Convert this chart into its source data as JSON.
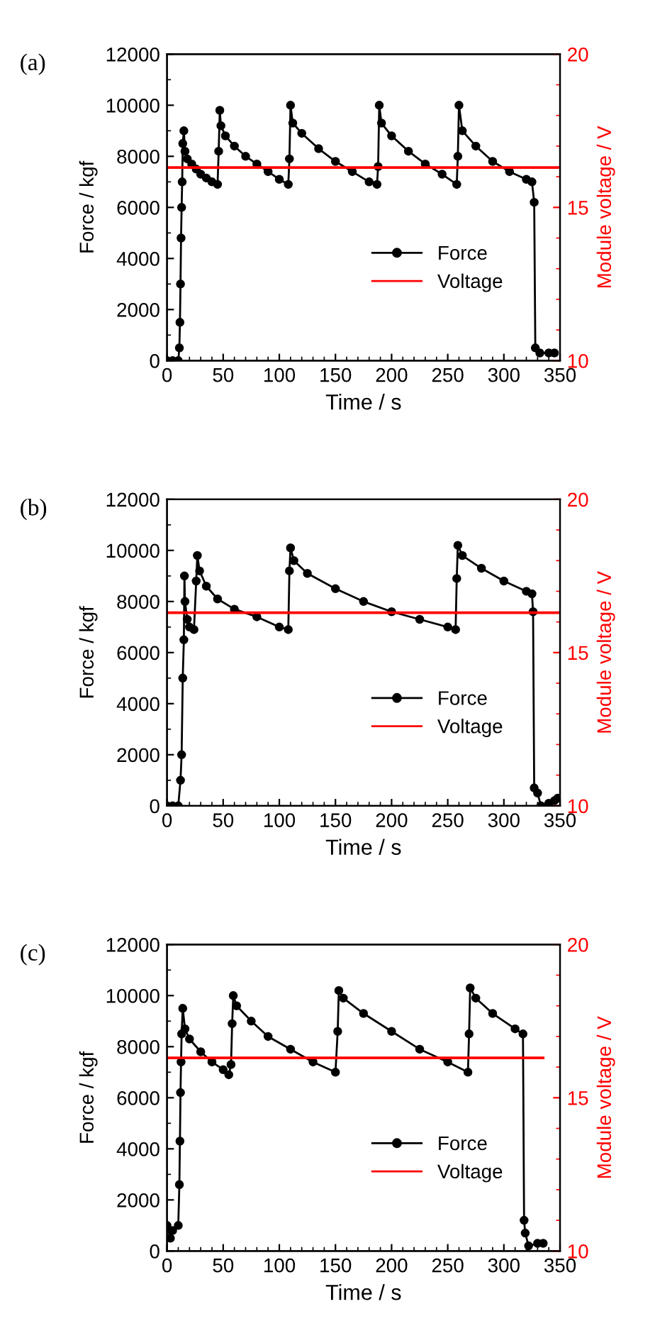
{
  "chart_data": [
    {
      "type": "line",
      "annotations": [
        "(a)"
      ],
      "xlabel": "Time / s",
      "ylabel": "Force / kgf",
      "y2label": "Module voltage / V",
      "xlim": [
        0,
        350
      ],
      "xticks": [
        0,
        50,
        100,
        150,
        200,
        250,
        300,
        350
      ],
      "ylim": [
        0,
        12000
      ],
      "yticks": [
        0,
        2000,
        4000,
        6000,
        8000,
        10000,
        12000
      ],
      "y2lim": [
        10,
        20
      ],
      "y2ticks": [
        10,
        15,
        20
      ],
      "legend": "right",
      "grid": false,
      "series": [
        {
          "name": "Force",
          "color": "#000000",
          "marker": "circle",
          "x": [
            0,
            5,
            10,
            11,
            11.5,
            12,
            12.5,
            13,
            13.5,
            14,
            15,
            16,
            18,
            22,
            26,
            30,
            35,
            40,
            45,
            46,
            47,
            48,
            52,
            60,
            70,
            80,
            90,
            100,
            108,
            109,
            110,
            112,
            120,
            135,
            150,
            165,
            180,
            187,
            188,
            189,
            191,
            200,
            215,
            230,
            245,
            258,
            259,
            260,
            263,
            275,
            290,
            305,
            320,
            325,
            327,
            328,
            332,
            340,
            345
          ],
          "values": [
            0,
            0,
            0,
            500,
            1500,
            3000,
            4800,
            6000,
            7000,
            8500,
            9000,
            8200,
            7900,
            7700,
            7500,
            7300,
            7150,
            7000,
            6900,
            8200,
            9800,
            9200,
            8800,
            8400,
            8000,
            7700,
            7400,
            7100,
            6900,
            7900,
            10000,
            9300,
            8900,
            8300,
            7800,
            7400,
            7000,
            6900,
            7600,
            10000,
            9300,
            8800,
            8200,
            7700,
            7300,
            6900,
            8000,
            10000,
            9000,
            8400,
            7800,
            7400,
            7100,
            7000,
            6200,
            500,
            300,
            300,
            300
          ]
        },
        {
          "name": "Voltage",
          "color": "#ff0000",
          "axis": "y2",
          "marker": "none",
          "x": [
            0,
            350
          ],
          "values": [
            16.3,
            16.3
          ]
        }
      ]
    },
    {
      "type": "line",
      "annotations": [
        "(b)"
      ],
      "xlabel": "Time / s",
      "ylabel": "Force / kgf",
      "y2label": "Module voltage / V",
      "xlim": [
        0,
        350
      ],
      "xticks": [
        0,
        50,
        100,
        150,
        200,
        250,
        300,
        350
      ],
      "ylim": [
        0,
        12000
      ],
      "yticks": [
        0,
        2000,
        4000,
        6000,
        8000,
        10000,
        12000
      ],
      "y2lim": [
        10,
        20
      ],
      "y2ticks": [
        10,
        15,
        20
      ],
      "legend": "right",
      "grid": false,
      "series": [
        {
          "name": "Force",
          "color": "#000000",
          "marker": "circle",
          "x": [
            0,
            5,
            10,
            12,
            13,
            14,
            15,
            15.5,
            16,
            18,
            20,
            24,
            26,
            27,
            29,
            35,
            45,
            60,
            80,
            100,
            108,
            109,
            110,
            113,
            125,
            150,
            175,
            200,
            225,
            250,
            257,
            258,
            259,
            263,
            280,
            300,
            320,
            325,
            326,
            327,
            330,
            333,
            340,
            345,
            348
          ],
          "values": [
            0,
            0,
            0,
            1000,
            2000,
            5000,
            6500,
            9000,
            8000,
            7300,
            7000,
            6900,
            8800,
            9800,
            9200,
            8600,
            8100,
            7700,
            7400,
            7000,
            6900,
            9200,
            10100,
            9600,
            9100,
            8500,
            8000,
            7600,
            7300,
            7000,
            6900,
            8900,
            10200,
            9800,
            9300,
            8800,
            8400,
            8300,
            7600,
            700,
            500,
            0,
            100,
            200,
            300
          ]
        },
        {
          "name": "Voltage",
          "color": "#ff0000",
          "axis": "y2",
          "marker": "none",
          "x": [
            0,
            350
          ],
          "values": [
            16.3,
            16.3
          ]
        }
      ]
    },
    {
      "type": "line",
      "annotations": [
        "(c)"
      ],
      "xlabel": "Time / s",
      "ylabel": "Force / kgf",
      "y2label": "Module voltage / V",
      "xlim": [
        0,
        350
      ],
      "xticks": [
        0,
        50,
        100,
        150,
        200,
        250,
        300,
        350
      ],
      "ylim": [
        0,
        12000
      ],
      "yticks": [
        0,
        2000,
        4000,
        6000,
        8000,
        10000,
        12000
      ],
      "y2lim": [
        10,
        20
      ],
      "y2ticks": [
        10,
        15,
        20
      ],
      "legend": "right",
      "grid": false,
      "series": [
        {
          "name": "Force",
          "color": "#000000",
          "marker": "circle",
          "x": [
            0,
            3,
            5,
            10,
            11,
            11.5,
            12,
            12.5,
            13,
            14,
            16,
            20,
            30,
            40,
            50,
            55,
            57,
            58,
            59,
            62,
            75,
            90,
            110,
            130,
            150,
            152,
            153,
            157,
            175,
            200,
            225,
            250,
            268,
            269,
            270,
            275,
            290,
            310,
            317,
            318,
            319,
            322,
            330,
            335
          ],
          "values": [
            1000,
            500,
            800,
            1000,
            2600,
            4300,
            6200,
            7400,
            8500,
            9500,
            8700,
            8300,
            7800,
            7400,
            7100,
            6900,
            7300,
            8900,
            10000,
            9600,
            9000,
            8400,
            7900,
            7400,
            7000,
            8600,
            10200,
            9900,
            9300,
            8600,
            7900,
            7400,
            7000,
            8500,
            10300,
            9900,
            9300,
            8700,
            8500,
            1200,
            700,
            200,
            300,
            300
          ]
        },
        {
          "name": "Voltage",
          "color": "#ff0000",
          "axis": "y2",
          "marker": "none",
          "x": [
            0,
            335
          ],
          "values": [
            16.3,
            16.3
          ]
        }
      ]
    }
  ]
}
